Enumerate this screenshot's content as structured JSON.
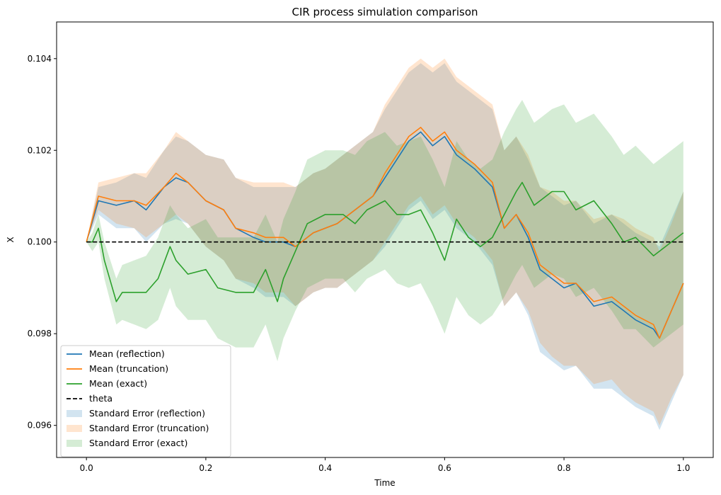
{
  "chart_data": {
    "type": "line",
    "title": "CIR process simulation comparison",
    "xlabel": "Time",
    "ylabel": "X",
    "xlim": [
      -0.05,
      1.05
    ],
    "ylim": [
      0.0953,
      0.1048
    ],
    "xticks": [
      0.0,
      0.2,
      0.4,
      0.6,
      0.8,
      1.0
    ],
    "xtick_labels": [
      "0.0",
      "0.2",
      "0.4",
      "0.6",
      "0.8",
      "1.0"
    ],
    "yticks": [
      0.096,
      0.098,
      0.1,
      0.102,
      0.104
    ],
    "ytick_labels": [
      "0.096",
      "0.098",
      "0.100",
      "0.102",
      "0.104"
    ],
    "grid": false,
    "legend_position": "lower-left",
    "colors": {
      "reflection": "#1f77b4",
      "truncation": "#ff7f0e",
      "exact": "#2ca02c",
      "theta": "#000000"
    },
    "theta": 0.1,
    "series": [
      {
        "name": "Mean (reflection)",
        "key": "reflection",
        "x": [
          0.0,
          0.02,
          0.05,
          0.08,
          0.1,
          0.13,
          0.15,
          0.17,
          0.2,
          0.23,
          0.25,
          0.28,
          0.3,
          0.33,
          0.35,
          0.38,
          0.4,
          0.42,
          0.45,
          0.48,
          0.5,
          0.52,
          0.54,
          0.56,
          0.58,
          0.6,
          0.62,
          0.65,
          0.68,
          0.7,
          0.72,
          0.74,
          0.76,
          0.78,
          0.8,
          0.82,
          0.85,
          0.88,
          0.9,
          0.92,
          0.95,
          0.96,
          0.98,
          1.0
        ],
        "y": [
          0.1,
          0.1009,
          0.1008,
          0.1009,
          0.1007,
          0.1012,
          0.1014,
          0.1013,
          0.1009,
          0.1007,
          0.1003,
          0.1001,
          0.1,
          0.1,
          0.0999,
          0.1002,
          0.1003,
          0.1004,
          0.1007,
          0.101,
          0.1014,
          0.1018,
          0.1022,
          0.1024,
          0.1021,
          0.1023,
          0.1019,
          0.1016,
          0.1012,
          0.1003,
          0.1006,
          0.1001,
          0.0994,
          0.0992,
          0.099,
          0.0991,
          0.0986,
          0.0987,
          0.0985,
          0.0983,
          0.0981,
          0.0979,
          0.0985,
          0.0991
        ]
      },
      {
        "name": "Mean (truncation)",
        "key": "truncation",
        "x": [
          0.0,
          0.02,
          0.05,
          0.08,
          0.1,
          0.13,
          0.15,
          0.17,
          0.2,
          0.23,
          0.25,
          0.28,
          0.3,
          0.33,
          0.35,
          0.38,
          0.4,
          0.42,
          0.45,
          0.48,
          0.5,
          0.52,
          0.54,
          0.56,
          0.58,
          0.6,
          0.62,
          0.65,
          0.68,
          0.7,
          0.72,
          0.74,
          0.76,
          0.78,
          0.8,
          0.82,
          0.85,
          0.88,
          0.9,
          0.92,
          0.95,
          0.96,
          0.98,
          1.0
        ],
        "y": [
          0.1,
          0.101,
          0.1009,
          0.1009,
          0.1008,
          0.1012,
          0.1015,
          0.1013,
          0.1009,
          0.1007,
          0.1003,
          0.1002,
          0.1001,
          0.1001,
          0.0999,
          0.1002,
          0.1003,
          0.1004,
          0.1007,
          0.101,
          0.1015,
          0.1019,
          0.1023,
          0.1025,
          0.1022,
          0.1024,
          0.102,
          0.1017,
          0.1013,
          0.1003,
          0.1006,
          0.1002,
          0.0995,
          0.0993,
          0.0991,
          0.0991,
          0.0987,
          0.0988,
          0.0986,
          0.0984,
          0.0982,
          0.0979,
          0.0985,
          0.0991
        ]
      },
      {
        "name": "Mean (exact)",
        "key": "exact",
        "x": [
          0.0,
          0.01,
          0.02,
          0.03,
          0.05,
          0.06,
          0.08,
          0.1,
          0.12,
          0.14,
          0.15,
          0.17,
          0.2,
          0.22,
          0.25,
          0.28,
          0.3,
          0.32,
          0.33,
          0.35,
          0.37,
          0.4,
          0.43,
          0.45,
          0.47,
          0.5,
          0.52,
          0.54,
          0.56,
          0.58,
          0.6,
          0.62,
          0.64,
          0.66,
          0.68,
          0.7,
          0.72,
          0.73,
          0.75,
          0.78,
          0.8,
          0.82,
          0.85,
          0.88,
          0.9,
          0.92,
          0.95,
          0.97,
          1.0
        ],
        "y": [
          0.1,
          0.1,
          0.1003,
          0.0996,
          0.0987,
          0.0989,
          0.0989,
          0.0989,
          0.0992,
          0.0999,
          0.0996,
          0.0993,
          0.0994,
          0.099,
          0.0989,
          0.0989,
          0.0994,
          0.0987,
          0.0992,
          0.0998,
          0.1004,
          0.1006,
          0.1006,
          0.1004,
          0.1007,
          0.1009,
          0.1006,
          0.1006,
          0.1007,
          0.1002,
          0.0996,
          0.1005,
          0.1001,
          0.0999,
          0.1001,
          0.1006,
          0.1011,
          0.1013,
          0.1008,
          0.1011,
          0.1011,
          0.1007,
          0.1009,
          0.1004,
          0.1,
          0.1001,
          0.0997,
          0.0999,
          0.1002
        ]
      },
      {
        "name": "theta",
        "key": "theta",
        "x": [
          0.0,
          1.0
        ],
        "y": [
          0.1,
          0.1
        ]
      }
    ],
    "bands": [
      {
        "name": "Standard Error (reflection)",
        "key": "reflection",
        "opacity": 0.2,
        "halfwidth": [
          0.0,
          0.0003,
          0.0005,
          0.0006,
          0.0007,
          0.0008,
          0.0009,
          0.0009,
          0.001,
          0.0011,
          0.0011,
          0.0011,
          0.0012,
          0.0012,
          0.0013,
          0.0013,
          0.0013,
          0.0014,
          0.0014,
          0.0014,
          0.0015,
          0.0015,
          0.0015,
          0.0015,
          0.0016,
          0.0016,
          0.0016,
          0.0016,
          0.0017,
          0.0017,
          0.0017,
          0.0017,
          0.0018,
          0.0018,
          0.0018,
          0.0018,
          0.0018,
          0.0019,
          0.0019,
          0.0019,
          0.0019,
          0.002,
          0.002,
          0.002
        ]
      },
      {
        "name": "Standard Error (truncation)",
        "key": "truncation",
        "opacity": 0.2,
        "halfwidth": [
          0.0,
          0.0003,
          0.0005,
          0.0006,
          0.0007,
          0.0008,
          0.0009,
          0.0009,
          0.001,
          0.0011,
          0.0011,
          0.0011,
          0.0012,
          0.0012,
          0.0013,
          0.0013,
          0.0013,
          0.0014,
          0.0014,
          0.0014,
          0.0015,
          0.0015,
          0.0015,
          0.0015,
          0.0016,
          0.0016,
          0.0016,
          0.0016,
          0.0017,
          0.0017,
          0.0017,
          0.0017,
          0.0017,
          0.0018,
          0.0018,
          0.0018,
          0.0018,
          0.0018,
          0.0019,
          0.0019,
          0.0019,
          0.0019,
          0.0019,
          0.002
        ]
      },
      {
        "name": "Standard Error (exact)",
        "key": "exact",
        "opacity": 0.2,
        "halfwidth": [
          0.0,
          0.0002,
          0.0003,
          0.0004,
          0.0005,
          0.0006,
          0.0007,
          0.0008,
          0.0009,
          0.0009,
          0.001,
          0.001,
          0.0011,
          0.0011,
          0.0012,
          0.0012,
          0.0012,
          0.0013,
          0.0013,
          0.0013,
          0.0014,
          0.0014,
          0.0014,
          0.0015,
          0.0015,
          0.0015,
          0.0015,
          0.0016,
          0.0016,
          0.0016,
          0.0016,
          0.0017,
          0.0017,
          0.0017,
          0.0017,
          0.0018,
          0.0018,
          0.0018,
          0.0018,
          0.0018,
          0.0019,
          0.0019,
          0.0019,
          0.0019,
          0.0019,
          0.002,
          0.002,
          0.002,
          0.002
        ]
      }
    ]
  }
}
